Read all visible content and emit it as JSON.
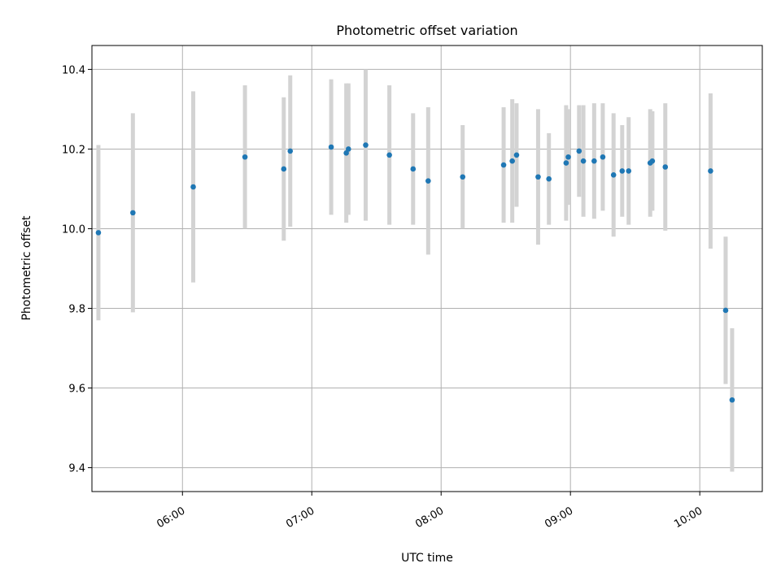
{
  "chart_data": {
    "type": "scatter",
    "title": "Photometric offset variation",
    "xlabel": "UTC time",
    "ylabel": "Photometric offset",
    "x_unit": "UTC time (HH:MM)",
    "x_ticks": [
      "06:00",
      "07:00",
      "08:00",
      "09:00",
      "10:00"
    ],
    "x_range": [
      "05:18",
      "10:29"
    ],
    "y_ticks": [
      9.4,
      9.6,
      9.8,
      10.0,
      10.2,
      10.4
    ],
    "ylim": [
      9.34,
      10.46
    ],
    "grid": true,
    "error_bar_color": "#d3d3d3",
    "point_color": "#1f77b4",
    "series": [
      {
        "points": [
          {
            "x": "05:21",
            "y": 9.99,
            "err": 0.22
          },
          {
            "x": "05:37",
            "y": 10.04,
            "err": 0.25
          },
          {
            "x": "06:05",
            "y": 10.105,
            "err": 0.24
          },
          {
            "x": "06:29",
            "y": 10.18,
            "err": 0.18
          },
          {
            "x": "06:47",
            "y": 10.15,
            "err": 0.18
          },
          {
            "x": "06:50",
            "y": 10.195,
            "err": 0.19
          },
          {
            "x": "07:09",
            "y": 10.205,
            "err": 0.17
          },
          {
            "x": "07:16",
            "y": 10.19,
            "err": 0.175
          },
          {
            "x": "07:17",
            "y": 10.2,
            "err": 0.165
          },
          {
            "x": "07:25",
            "y": 10.21,
            "err": 0.19
          },
          {
            "x": "07:36",
            "y": 10.185,
            "err": 0.175
          },
          {
            "x": "07:47",
            "y": 10.15,
            "err": 0.14
          },
          {
            "x": "07:54",
            "y": 10.12,
            "err": 0.185
          },
          {
            "x": "08:10",
            "y": 10.13,
            "err": 0.13
          },
          {
            "x": "08:29",
            "y": 10.16,
            "err": 0.145
          },
          {
            "x": "08:33",
            "y": 10.17,
            "err": 0.155
          },
          {
            "x": "08:35",
            "y": 10.185,
            "err": 0.13
          },
          {
            "x": "08:45",
            "y": 10.13,
            "err": 0.17
          },
          {
            "x": "08:50",
            "y": 10.125,
            "err": 0.115
          },
          {
            "x": "08:58",
            "y": 10.165,
            "err": 0.145
          },
          {
            "x": "08:59",
            "y": 10.18,
            "err": 0.12
          },
          {
            "x": "09:04",
            "y": 10.195,
            "err": 0.115
          },
          {
            "x": "09:06",
            "y": 10.17,
            "err": 0.14
          },
          {
            "x": "09:11",
            "y": 10.17,
            "err": 0.145
          },
          {
            "x": "09:15",
            "y": 10.18,
            "err": 0.135
          },
          {
            "x": "09:20",
            "y": 10.135,
            "err": 0.155
          },
          {
            "x": "09:24",
            "y": 10.145,
            "err": 0.115
          },
          {
            "x": "09:27",
            "y": 10.145,
            "err": 0.135
          },
          {
            "x": "09:37",
            "y": 10.165,
            "err": 0.135
          },
          {
            "x": "09:38",
            "y": 10.17,
            "err": 0.125
          },
          {
            "x": "09:44",
            "y": 10.155,
            "err": 0.16
          },
          {
            "x": "10:05",
            "y": 10.145,
            "err": 0.195
          },
          {
            "x": "10:12",
            "y": 9.795,
            "err": 0.185
          },
          {
            "x": "10:15",
            "y": 9.57,
            "err": 0.18
          }
        ]
      }
    ]
  }
}
